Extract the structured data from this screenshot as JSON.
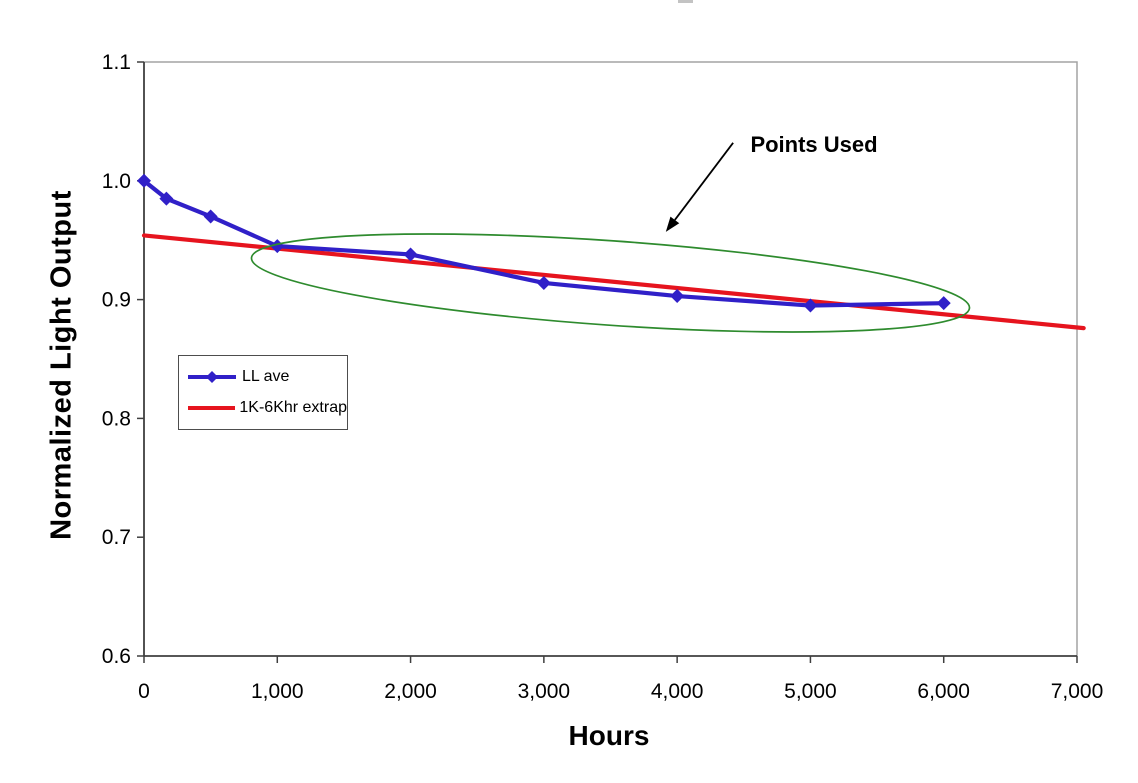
{
  "chart_data": {
    "type": "line",
    "title": "",
    "xlabel": "Hours",
    "ylabel": "Normalized Light Output",
    "xlim": [
      0,
      7000
    ],
    "ylim": [
      0.6,
      1.1
    ],
    "x_ticks": [
      0,
      1000,
      2000,
      3000,
      4000,
      5000,
      6000,
      7000
    ],
    "x_tick_labels": [
      "0",
      "1,000",
      "2,000",
      "3,000",
      "4,000",
      "5,000",
      "6,000",
      "7,000"
    ],
    "y_ticks": [
      1.1,
      1.0,
      0.9,
      0.8,
      0.7,
      0.6
    ],
    "y_tick_labels": [
      "1.1",
      "1.0",
      "0.9",
      "0.8",
      "0.7",
      "0.6"
    ],
    "grid": false,
    "legend_position": "inside-mid-left",
    "axis_color": "#3f3f3f",
    "border_color": "#a3a3a3",
    "tick_label_color": "#000000",
    "series": [
      {
        "name": "LL ave",
        "type": "line-markers",
        "color": "#3020C8",
        "marker": "diamond",
        "x": [
          0,
          168,
          500,
          1000,
          2000,
          3000,
          4000,
          5000,
          6000
        ],
        "y": [
          1.0,
          0.985,
          0.97,
          0.945,
          0.938,
          0.914,
          0.903,
          0.895,
          0.897
        ]
      },
      {
        "name": "1K-6Khr extrap",
        "type": "line",
        "color": "#E6141E",
        "marker": "none",
        "x": [
          0,
          7050
        ],
        "y": [
          0.954,
          0.876
        ]
      }
    ],
    "annotation": {
      "text": "Points Used",
      "text_color": "#000000",
      "text_x_hours": 4550,
      "text_y_value": 1.03,
      "arrow_color": "#000000",
      "arrow_from": [
        4420,
        1.032
      ],
      "arrow_to": [
        3915,
        0.957
      ],
      "ellipse": {
        "color": "#2E8B2E",
        "cx_hours": 3500,
        "cy_value": 0.914,
        "rx_hours": 2700,
        "ry_value": 0.0355,
        "rotate_deg": 4
      }
    }
  }
}
